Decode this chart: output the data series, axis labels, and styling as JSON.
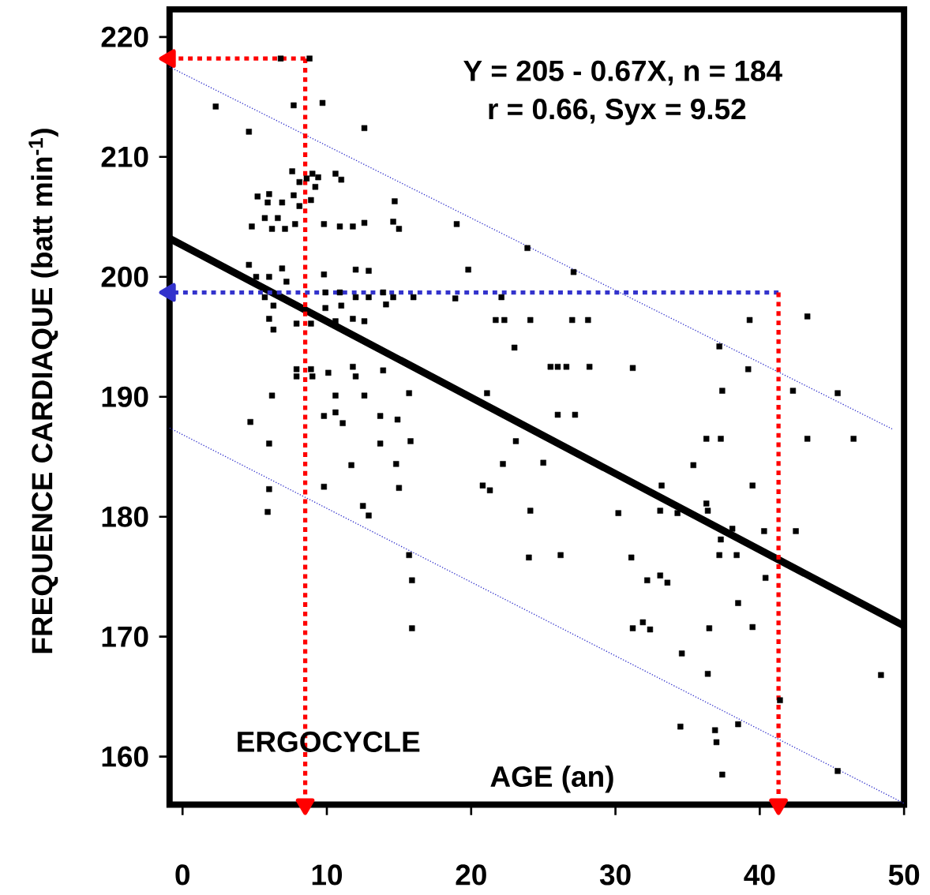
{
  "chart_data": {
    "type": "scatter",
    "xlabel": "AGE  (an)",
    "ylabel": "FREQUENCE CARDIAQUE  (batt min$^{-1}$)",
    "annotations": [
      "Y = 205 - 0.67X,   n = 184",
      "r = 0.66,   Syx = 9.52",
      "ERGOCYCLE"
    ],
    "xlim": [
      -0.9,
      50
    ],
    "ylim": [
      156,
      222.3
    ],
    "xticks": [
      0,
      10,
      20,
      30,
      40,
      50
    ],
    "yticks": [
      160,
      170,
      180,
      190,
      200,
      210,
      220
    ],
    "series": [
      {
        "color": "#000000",
        "marker": "square",
        "x": [
          2.3,
          4.6,
          6.8,
          8.8,
          7.7,
          9.7,
          12.6,
          7.6,
          9.0,
          9.4,
          10.6,
          11.0,
          8.1,
          8.6,
          9.2,
          7.7,
          6.0,
          5.2,
          5.9,
          6.9,
          8.1,
          8.9,
          14.7,
          4.8,
          5.7,
          6.2,
          6.6,
          7.1,
          7.8,
          9.8,
          10.9,
          11.8,
          12.6,
          14.6,
          15.0,
          19.0,
          23.9,
          27.1,
          19.8,
          4.6,
          6.9,
          6.0,
          5.1,
          7.2,
          9.8,
          12.0,
          12.9,
          5.7,
          6.3,
          6.0,
          6.3,
          7.9,
          8.9,
          9.9,
          9.9,
          11.0,
          12.0,
          12.9,
          13.9,
          14.1,
          14.6,
          16.0,
          18.9,
          10.9,
          10.6,
          11.8,
          12.6,
          7.9,
          7.9,
          8.9,
          9.0,
          10.1,
          11.8,
          12.0,
          13.9,
          6.2,
          10.6,
          12.6,
          15.7,
          4.7,
          9.8,
          10.6,
          11.1,
          13.7,
          14.9,
          6.0,
          13.7,
          15.8,
          11.7,
          14.8,
          6.0,
          9.8,
          15.0,
          5.9,
          12.5,
          12.9,
          15.7,
          15.9,
          15.9,
          22.1,
          21.7,
          22.3,
          24.1,
          27.0,
          28.1,
          39.3,
          43.3,
          23.0,
          37.2,
          25.5,
          26.0,
          26.6,
          28.2,
          31.2,
          39.2,
          37.4,
          42.3,
          45.4,
          21.1,
          26.0,
          27.2,
          23.1,
          36.3,
          37.3,
          43.3,
          46.5,
          22.2,
          25.0,
          35.4,
          20.8,
          21.3,
          33.2,
          39.5,
          24.1,
          30.2,
          33.1,
          34.3,
          36.3,
          36.4,
          38.1,
          37.3,
          40.3,
          42.5,
          24.0,
          26.2,
          31.1,
          37.2,
          38.4,
          40.4,
          32.2,
          33.1,
          33.6,
          38.5,
          31.2,
          31.9,
          32.4,
          36.5,
          39.5,
          34.6,
          36.4,
          48.4,
          41.4,
          34.5,
          36.9,
          37.0,
          38.5,
          37.4,
          45.4
        ],
        "values": [
          214.2,
          212.1,
          218.2,
          218.2,
          214.3,
          214.5,
          212.4,
          208.8,
          208.6,
          208.3,
          208.6,
          208.1,
          207.9,
          208.2,
          207.5,
          206.8,
          206.9,
          206.7,
          206.2,
          206.2,
          205.9,
          206.4,
          206.3,
          204.2,
          204.9,
          204.0,
          204.9,
          204.0,
          204.4,
          204.4,
          204.2,
          204.2,
          204.5,
          204.6,
          204.0,
          204.4,
          202.4,
          200.4,
          200.6,
          201.0,
          200.7,
          200.0,
          200.0,
          199.6,
          200.2,
          200.6,
          200.5,
          198.3,
          197.6,
          196.5,
          195.6,
          196.1,
          196.1,
          198.7,
          197.4,
          197.6,
          198.3,
          198.3,
          198.7,
          197.7,
          198.3,
          198.3,
          198.2,
          198.7,
          196.3,
          196.5,
          196.3,
          192.3,
          191.7,
          192.3,
          191.7,
          192.0,
          192.5,
          191.7,
          192.2,
          190.1,
          190.1,
          190.1,
          190.3,
          187.9,
          188.4,
          188.7,
          187.8,
          188.4,
          188.1,
          186.1,
          186.1,
          186.3,
          184.3,
          184.4,
          182.3,
          182.5,
          182.4,
          180.4,
          180.9,
          180.1,
          176.8,
          174.7,
          170.7,
          198.3,
          196.4,
          196.4,
          196.4,
          196.4,
          196.4,
          196.4,
          196.7,
          194.1,
          194.2,
          192.5,
          192.5,
          192.5,
          192.5,
          192.4,
          192.3,
          190.5,
          190.5,
          190.3,
          190.3,
          188.5,
          188.5,
          186.3,
          186.5,
          186.5,
          186.5,
          186.5,
          184.4,
          184.5,
          184.3,
          182.6,
          182.2,
          182.6,
          182.6,
          180.5,
          180.3,
          180.5,
          180.3,
          181.1,
          180.5,
          179.0,
          178.1,
          178.8,
          178.8,
          176.6,
          176.8,
          176.6,
          176.8,
          176.8,
          174.9,
          174.7,
          175.1,
          174.5,
          172.8,
          170.7,
          171.2,
          170.6,
          170.7,
          170.8,
          168.6,
          166.9,
          166.8,
          164.7,
          162.5,
          162.2,
          161.2,
          162.7,
          158.5,
          158.8
        ]
      },
      {
        "type": "line",
        "color": "#000000",
        "marker": "none",
        "line_style": "solid",
        "x": [
          -0.9,
          50
        ],
        "values": [
          203.2,
          170.9
        ]
      },
      {
        "type": "line",
        "color": "#3333cc",
        "marker": "none",
        "line_style": "dotted",
        "x": [
          -0.9,
          49.2
        ],
        "values": [
          217.5,
          187.3
        ]
      },
      {
        "type": "line",
        "color": "#3333cc",
        "marker": "none",
        "line_style": "dotted",
        "x": [
          -0.9,
          50
        ],
        "values": [
          187.4,
          156.1
        ]
      },
      {
        "type": "line",
        "color": "#ff0000",
        "marker": "triangle",
        "line_style": "dashed",
        "x": [
          8.5,
          -0.9
        ],
        "values": [
          218.2,
          218.2
        ]
      },
      {
        "type": "line",
        "color": "#ff0000",
        "marker": "triangle",
        "line_style": "dashed",
        "x": [
          8.5,
          8.5
        ],
        "values": [
          218.2,
          156.0
        ]
      },
      {
        "type": "line",
        "color": "#3333cc",
        "marker": "triangle",
        "line_style": "dashed",
        "x": [
          41.3,
          -0.9
        ],
        "values": [
          198.7,
          198.7
        ]
      },
      {
        "type": "line",
        "color": "#ff0000",
        "marker": "triangle",
        "line_style": "dashed",
        "x": [
          41.3,
          41.3
        ],
        "values": [
          198.7,
          156.0
        ]
      }
    ]
  }
}
